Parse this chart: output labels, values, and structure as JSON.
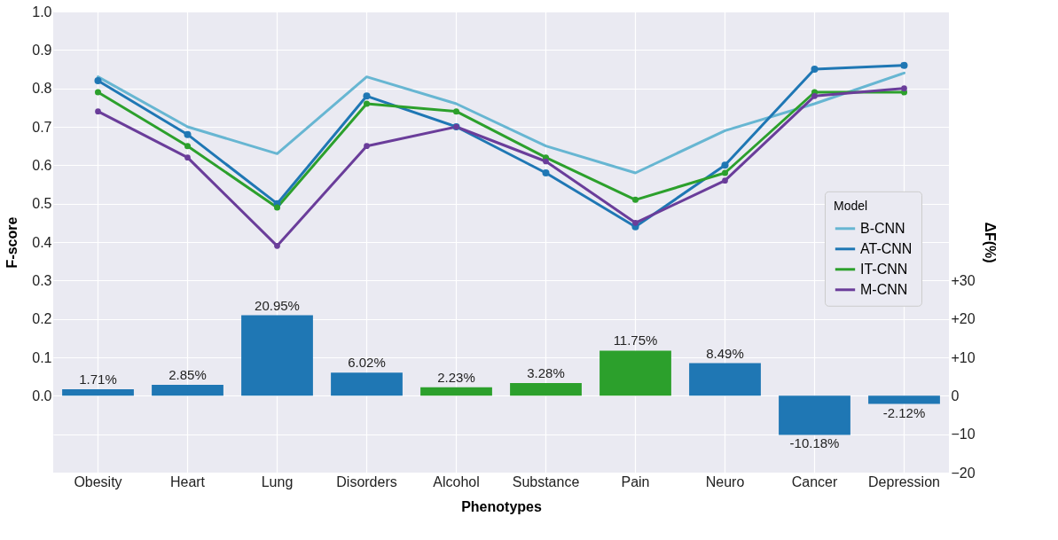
{
  "chart_data": {
    "type": "line",
    "xlabel": "Phenotypes",
    "ylabel": "F-score",
    "y2label": "ΔF(%)",
    "legend_title": "Model",
    "legend": "right",
    "grid": true,
    "categories": [
      "Obesity",
      "Heart",
      "Lung",
      "Disorders",
      "Alcohol",
      "Substance",
      "Pain",
      "Neuro",
      "Cancer",
      "Depression"
    ],
    "ylim": [
      -0.2,
      1.0
    ],
    "yticks": [
      {
        "value": 0,
        "label": "0.0"
      },
      0.1,
      0.2,
      0.3,
      0.4,
      0.5,
      0.6,
      0.7,
      0.8,
      0.9,
      {
        "value": 1,
        "label": "1.0"
      }
    ],
    "y2lim": [
      -20,
      100
    ],
    "y2ticks": [
      -20,
      -10,
      0,
      {
        "value": 10,
        "label": "+10"
      },
      {
        "value": 20,
        "label": "+20"
      },
      {
        "value": 30,
        "label": "+30"
      }
    ],
    "series": [
      {
        "type": "bar",
        "axis": "y2",
        "colors": [
          "#1f77b4",
          "#1f77b4",
          "#1f77b4",
          "#1f77b4",
          "#2ca02c",
          "#2ca02c",
          "#2ca02c",
          "#1f77b4",
          "#1f77b4",
          "#1f77b4"
        ],
        "values": [
          1.71,
          2.85,
          20.95,
          6.02,
          2.23,
          3.28,
          11.75,
          8.49,
          -10.18,
          -2.12
        ],
        "value_labels": [
          "1.71%",
          "2.85%",
          "20.95%",
          "6.02%",
          "2.23%",
          "3.28%",
          "11.75%",
          "8.49%",
          "-10.18%",
          "-2.12%"
        ]
      },
      {
        "name": "B-CNN",
        "color": "#67b6d2",
        "marker": "none",
        "values": [
          0.83,
          0.7,
          0.63,
          0.83,
          0.76,
          0.65,
          0.58,
          0.69,
          0.76,
          0.84
        ]
      },
      {
        "name": "AT-CNN",
        "color": "#1f77b4",
        "marker": "circle",
        "values": [
          0.82,
          0.68,
          0.5,
          0.78,
          0.7,
          0.58,
          0.44,
          0.6,
          0.85,
          0.86
        ]
      },
      {
        "name": "IT-CNN",
        "color": "#2ca02c",
        "marker": "circle",
        "values": [
          0.79,
          0.65,
          0.49,
          0.76,
          0.74,
          0.62,
          0.51,
          0.58,
          0.79,
          0.79
        ]
      },
      {
        "name": "M-CNN",
        "color": "#6a3d9a",
        "marker": "circle",
        "values": [
          0.74,
          0.62,
          0.39,
          0.65,
          0.7,
          0.61,
          0.45,
          0.56,
          0.78,
          0.8
        ]
      }
    ]
  }
}
